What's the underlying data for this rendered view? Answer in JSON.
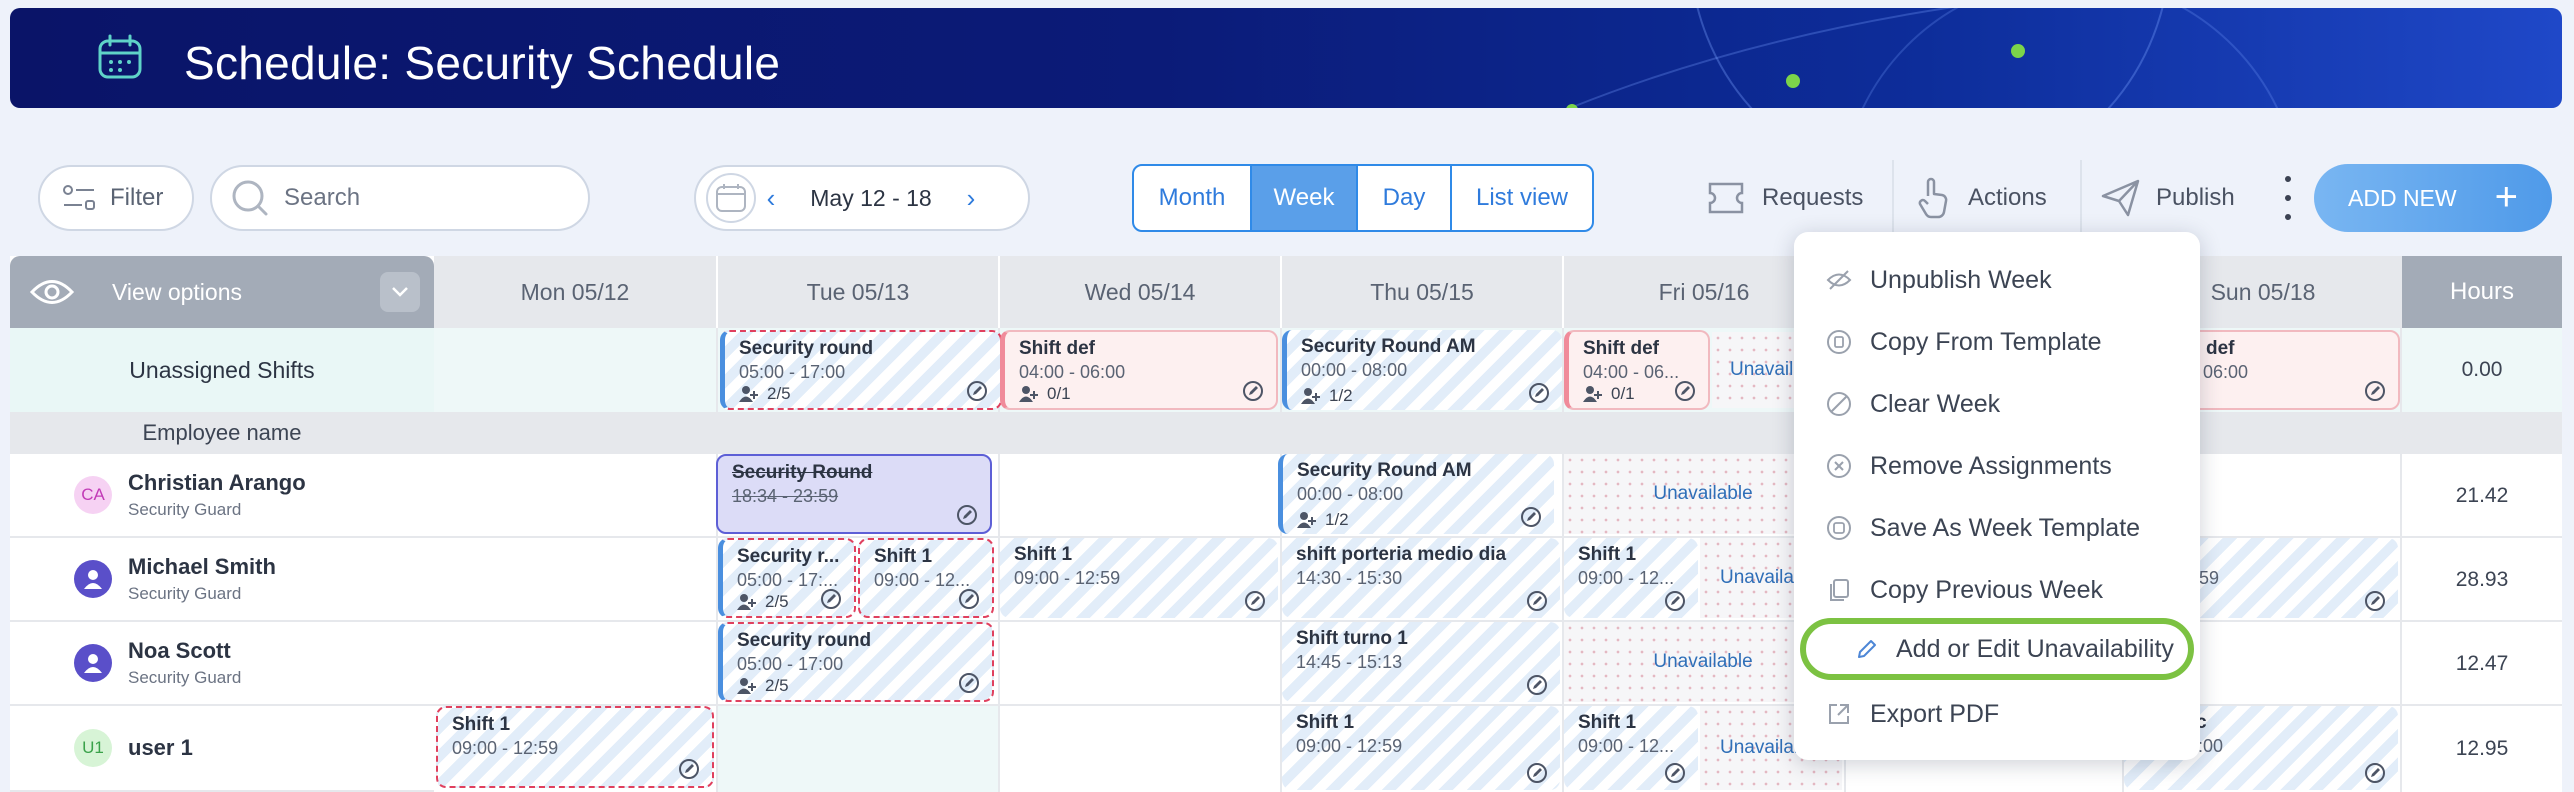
{
  "header": {
    "title": "Schedule: Security Schedule",
    "icon": "calendar-icon"
  },
  "toolbar": {
    "filter_label": "Filter",
    "search_placeholder": "Search",
    "date_range": "May 12 - 18",
    "views": [
      "Month",
      "Week",
      "Day",
      "List view"
    ],
    "active_view": "Week",
    "requests_label": "Requests",
    "actions_label": "Actions",
    "publish_label": "Publish",
    "add_new_label": "ADD NEW"
  },
  "grid": {
    "view_options_label": "View options",
    "days": [
      "Mon 05/12",
      "Tue 05/13",
      "Wed 05/14",
      "Thu 05/15",
      "Fri 05/16",
      "Sun 05/18"
    ],
    "hours_label": "Hours",
    "unassigned_label": "Unassigned Shifts",
    "unassigned_hours": "0.00",
    "employee_name_label": "Employee name",
    "unavailable_label": "Unavailable",
    "employees": [
      {
        "initials": "CA",
        "name": "Christian Arango",
        "role": "Security Guard",
        "hours": "21.42",
        "avatar_color": "#f6d2f3",
        "initials_color": "#c23bb7"
      },
      {
        "initials": "",
        "name": "Michael Smith",
        "role": "Security Guard",
        "hours": "28.93",
        "avatar_color": "#5a4fc9"
      },
      {
        "initials": "",
        "name": "Noa Scott",
        "role": "Security Guard",
        "hours": "12.47",
        "avatar_color": "#5a4fc9"
      },
      {
        "initials": "U1",
        "name": "user 1",
        "role": "",
        "hours": "12.95",
        "avatar_color": "#d7f4d6",
        "initials_color": "#3aa24a"
      }
    ],
    "shifts": {
      "un_tue": {
        "title": "Security round",
        "hours": "05:00 - 17:00",
        "count": "2/5"
      },
      "un_wed": {
        "title": "Shift def",
        "hours": "04:00 - 06:00",
        "count": "0/1"
      },
      "un_thu": {
        "title": "Security Round AM",
        "hours": "00:00 - 08:00",
        "count": "1/2"
      },
      "un_fri": {
        "title": "Shift def",
        "hours": "04:00 - 06...",
        "count": "0/1"
      },
      "un_sun": {
        "title": "def",
        "hours": "- 06:00"
      },
      "ca_tue": {
        "title": "Security Round",
        "hours": "18:34 - 23:59"
      },
      "ca_thu": {
        "title": "Security Round AM",
        "hours": "00:00 - 08:00",
        "count": "1/2"
      },
      "ms_tue1": {
        "title": "Security r...",
        "hours": "05:00 - 17:...",
        "count": "2/5"
      },
      "ms_tue2": {
        "title": "Shift 1",
        "hours": "09:00 - 12..."
      },
      "ms_wed": {
        "title": "Shift 1",
        "hours": "09:00 - 12:59"
      },
      "ms_thu": {
        "title": "shift porteria medio dia",
        "hours": "14:30 - 15:30"
      },
      "ms_fri": {
        "title": "Shift 1",
        "hours": "09:00 - 12..."
      },
      "ms_sun": {
        "hours": "12:59"
      },
      "ns_tue": {
        "title": "Security round",
        "hours": "05:00 - 17:00",
        "count": "2/5"
      },
      "ns_thu": {
        "title": "Shift turno 1",
        "hours": "14:45 - 15:13"
      },
      "u1_mon": {
        "title": "Shift 1",
        "hours": "09:00 - 12:59"
      },
      "u1_thu": {
        "title": "Shift 1",
        "hours": "09:00 - 12:59"
      },
      "u1_fri": {
        "title": "Shift 1",
        "hours": "09:00 - 12..."
      },
      "u1_sun": {
        "title": "c",
        "hours": "5:00"
      }
    },
    "partial": {
      "unavail_short": "Unavaila",
      "unavail_short2": "Unavailab"
    }
  },
  "actions_menu": {
    "items": [
      {
        "label": "Unpublish Week",
        "icon": "eye-off-icon"
      },
      {
        "label": "Copy From Template",
        "icon": "copy-template-icon"
      },
      {
        "label": "Clear Week",
        "icon": "clear-icon"
      },
      {
        "label": "Remove Assignments",
        "icon": "remove-icon"
      },
      {
        "label": "Save As Week Template",
        "icon": "save-template-icon"
      },
      {
        "label": "Copy Previous Week",
        "icon": "copy-icon"
      },
      {
        "label": "Add or Edit Unavailability",
        "icon": "pencil-icon"
      },
      {
        "label": "Export PDF",
        "icon": "export-icon"
      }
    ],
    "highlighted_item": "Add or Edit Unavailability",
    "highlight_color": "#7cc242"
  }
}
